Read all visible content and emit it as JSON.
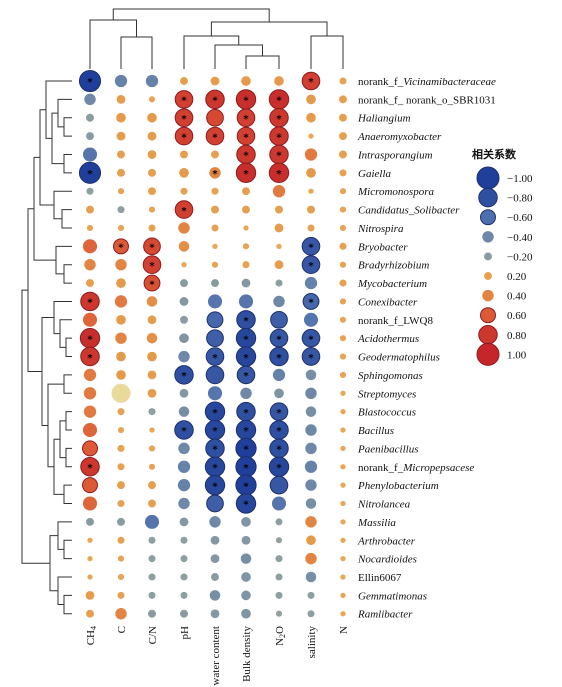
{
  "chart_data": {
    "type": "heatmap",
    "columns": [
      "CH4",
      "C",
      "C/N",
      "pH",
      "water content",
      "Bulk density",
      "N2O",
      "salinity",
      "N"
    ],
    "rows": [
      {
        "label": "norank_f_",
        "italic": "Vicinamibacteraceae"
      },
      {
        "label": "norank_f_ norank_o_SBR1031",
        "italic": ""
      },
      {
        "label": "",
        "italic": "Haliangium"
      },
      {
        "label": "",
        "italic": "Anaeromyxobacter"
      },
      {
        "label": "",
        "italic": "Intrasporangium"
      },
      {
        "label": "",
        "italic": "Gaiella"
      },
      {
        "label": "",
        "italic": "Micromonospora"
      },
      {
        "label": "",
        "italic": "Candidatus_Solibacter"
      },
      {
        "label": "",
        "italic": "Nitrospira"
      },
      {
        "label": "",
        "italic": "Bryobacter"
      },
      {
        "label": "",
        "italic": "Bradyrhizobium"
      },
      {
        "label": "",
        "italic": "Mycobacterium"
      },
      {
        "label": "",
        "italic": "Conexibacter"
      },
      {
        "label": "norank_f_LWQ8",
        "italic": ""
      },
      {
        "label": "",
        "italic": "Acidothermus"
      },
      {
        "label": "",
        "italic": "Geodermatophilus"
      },
      {
        "label": "",
        "italic": "Sphingomonas"
      },
      {
        "label": "",
        "italic": "Streptomyces"
      },
      {
        "label": "",
        "italic": "Blastococcus"
      },
      {
        "label": "",
        "italic": "Bacillus"
      },
      {
        "label": "",
        "italic": "Paenibacillus"
      },
      {
        "label": "norank_f_",
        "italic": "Micropepsacese"
      },
      {
        "label": "",
        "italic": "Phenylobacterium"
      },
      {
        "label": "",
        "italic": "Nitrolancea"
      },
      {
        "label": "",
        "italic": "Massilia"
      },
      {
        "label": "",
        "italic": "Arthrobacter"
      },
      {
        "label": "",
        "italic": "Nocardioides"
      },
      {
        "label": "Ellin6067",
        "italic": ""
      },
      {
        "label": "",
        "italic": "Gemmatimonas"
      },
      {
        "label": "",
        "italic": "Ramlibacter"
      }
    ],
    "values": [
      [
        -0.95,
        -0.45,
        -0.45,
        0.2,
        0.25,
        0.3,
        0.3,
        0.75,
        0.15
      ],
      [
        -0.4,
        0.25,
        0.1,
        0.75,
        0.8,
        0.85,
        0.85,
        0.3,
        0.2
      ],
      [
        -0.2,
        0.3,
        0.3,
        0.75,
        0.7,
        0.75,
        0.8,
        0.3,
        0.2
      ],
      [
        -0.2,
        0.25,
        0.25,
        0.75,
        0.75,
        0.75,
        0.8,
        0.05,
        0.2
      ],
      [
        -0.55,
        0.2,
        0.25,
        0.2,
        0.2,
        0.8,
        0.8,
        0.45,
        0.2
      ],
      [
        -0.95,
        0.2,
        0.2,
        0.3,
        0.4,
        0.85,
        0.85,
        0.3,
        0.15
      ],
      [
        -0.15,
        0.1,
        0.2,
        0.15,
        0.15,
        0.2,
        0.45,
        0.05,
        0.1
      ],
      [
        0.2,
        -0.15,
        0.1,
        0.75,
        0.2,
        0.2,
        0.2,
        0.2,
        0.1
      ],
      [
        0.1,
        0.1,
        0.15,
        0.4,
        0.15,
        0.05,
        0.25,
        0.15,
        0.1
      ],
      [
        0.55,
        0.6,
        0.7,
        0.35,
        0.05,
        0.1,
        0.05,
        -0.75,
        0.15
      ],
      [
        0.4,
        0.4,
        0.75,
        0.05,
        0.1,
        0.15,
        0.25,
        -0.75,
        0.1
      ],
      [
        0.2,
        0.3,
        0.65,
        -0.2,
        -0.2,
        -0.25,
        -0.15,
        -0.45,
        0.15
      ],
      [
        0.8,
        0.45,
        0.35,
        -0.25,
        -0.55,
        -0.55,
        -0.4,
        -0.65,
        0.1
      ],
      [
        0.55,
        0.3,
        0.25,
        -0.2,
        -0.65,
        -0.8,
        -0.7,
        -0.55,
        0.1
      ],
      [
        0.85,
        0.4,
        0.35,
        -0.3,
        -0.7,
        -0.85,
        -0.75,
        -0.75,
        0.1
      ],
      [
        0.8,
        0.3,
        0.3,
        -0.4,
        -0.75,
        -0.85,
        -0.8,
        -0.75,
        0.1
      ],
      [
        0.45,
        0.3,
        0.25,
        -0.8,
        -0.75,
        -0.75,
        -0.45,
        -0.35,
        0.1
      ],
      [
        0.45,
        0.18,
        0.25,
        -0.25,
        -0.55,
        -0.4,
        -0.3,
        -0.4,
        0.05
      ],
      [
        0.45,
        0.15,
        -0.15,
        -0.35,
        -0.85,
        -0.8,
        -0.75,
        -0.35,
        0.05
      ],
      [
        0.55,
        0.1,
        0.05,
        -0.8,
        -0.85,
        -0.85,
        -0.8,
        -0.4,
        0.05
      ],
      [
        0.6,
        0.15,
        0.1,
        -0.4,
        -0.8,
        -0.9,
        -0.8,
        -0.4,
        0.05
      ],
      [
        0.8,
        0.15,
        0.1,
        -0.45,
        -0.85,
        -0.9,
        -0.85,
        -0.45,
        0.05
      ],
      [
        0.6,
        0.2,
        0.2,
        -0.45,
        -0.85,
        -0.9,
        -0.75,
        -0.4,
        0.05
      ],
      [
        0.55,
        0.15,
        0.2,
        -0.4,
        -0.7,
        -0.85,
        -0.55,
        -0.35,
        0.05
      ],
      [
        -0.2,
        -0.2,
        -0.55,
        -0.25,
        -0.4,
        -0.3,
        -0.15,
        0.4,
        0.05
      ],
      [
        0.05,
        0.15,
        -0.15,
        -0.15,
        -0.25,
        -0.25,
        -0.1,
        0.3,
        0.05
      ],
      [
        0.05,
        0.1,
        -0.15,
        -0.15,
        -0.25,
        -0.35,
        -0.15,
        0.4,
        0.05
      ],
      [
        0.05,
        0.1,
        -0.15,
        -0.15,
        -0.2,
        -0.3,
        -0.15,
        -0.35,
        0.05
      ],
      [
        0.25,
        0.15,
        -0.15,
        -0.15,
        -0.35,
        -0.3,
        -0.15,
        -0.15,
        0.05
      ],
      [
        0.2,
        0.4,
        -0.2,
        -0.2,
        -0.25,
        -0.3,
        -0.1,
        -0.15,
        0.05
      ]
    ],
    "significant": [
      [
        0,
        0
      ],
      [
        0,
        7
      ],
      [
        1,
        3
      ],
      [
        1,
        4
      ],
      [
        1,
        5
      ],
      [
        1,
        6
      ],
      [
        2,
        3
      ],
      [
        2,
        5
      ],
      [
        2,
        6
      ],
      [
        3,
        3
      ],
      [
        3,
        4
      ],
      [
        3,
        5
      ],
      [
        3,
        6
      ],
      [
        4,
        5
      ],
      [
        4,
        6
      ],
      [
        5,
        0
      ],
      [
        5,
        4
      ],
      [
        5,
        5
      ],
      [
        5,
        6
      ],
      [
        7,
        3
      ],
      [
        9,
        1
      ],
      [
        9,
        2
      ],
      [
        9,
        7
      ],
      [
        10,
        2
      ],
      [
        10,
        7
      ],
      [
        11,
        2
      ],
      [
        12,
        0
      ],
      [
        12,
        7
      ],
      [
        13,
        5
      ],
      [
        14,
        0
      ],
      [
        14,
        5
      ],
      [
        14,
        6
      ],
      [
        14,
        7
      ],
      [
        15,
        0
      ],
      [
        15,
        4
      ],
      [
        15,
        5
      ],
      [
        15,
        6
      ],
      [
        15,
        7
      ],
      [
        16,
        3
      ],
      [
        16,
        5
      ],
      [
        18,
        4
      ],
      [
        18,
        5
      ],
      [
        18,
        6
      ],
      [
        19,
        3
      ],
      [
        19,
        4
      ],
      [
        19,
        5
      ],
      [
        19,
        6
      ],
      [
        20,
        4
      ],
      [
        20,
        5
      ],
      [
        20,
        6
      ],
      [
        21,
        0
      ],
      [
        21,
        4
      ],
      [
        21,
        5
      ],
      [
        21,
        6
      ],
      [
        22,
        4
      ],
      [
        22,
        5
      ],
      [
        23,
        5
      ]
    ],
    "special_cells": [
      {
        "row": 17,
        "col": 1,
        "color": "#e9d99a",
        "value": 0.18
      }
    ],
    "legend": {
      "title": "相关系数",
      "entries": [
        "−1.00",
        "−0.80",
        "−0.60",
        "−0.40",
        "−0.20",
        "0.20",
        "0.40",
        "0.60",
        "0.80",
        "1.00"
      ],
      "entry_values": [
        -1.0,
        -0.8,
        -0.6,
        -0.4,
        -0.2,
        0.2,
        0.4,
        0.6,
        0.8,
        1.0
      ],
      "placement": "right"
    },
    "star_symbol": "*",
    "colors": {
      "neg_strong": "#1f3f9a",
      "neg_mid": "#4e6fae",
      "neg_weak": "#9aa89a",
      "pos_weak": "#e49a4a",
      "pos_mid": "#dd5a36",
      "pos_strong": "#c4262a"
    }
  }
}
